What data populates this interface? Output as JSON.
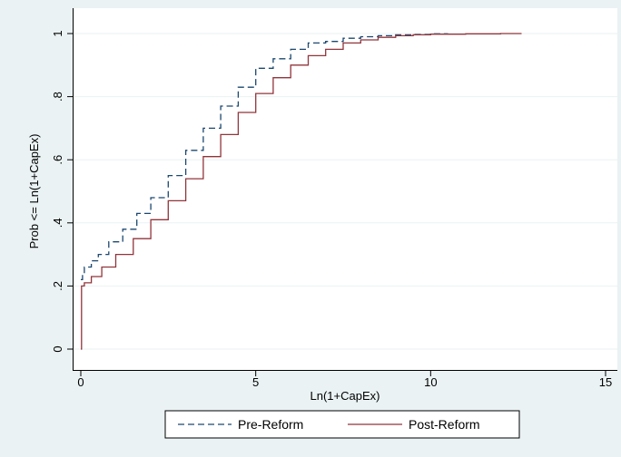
{
  "chart_data": {
    "type": "line",
    "step": true,
    "title": "",
    "xlabel": "Ln(1+CapEx)",
    "ylabel": "Prob <= Ln(1+CapEx)",
    "xlim": [
      0,
      15
    ],
    "ylim": [
      0,
      1
    ],
    "x_ticks": [
      0,
      5,
      10,
      15
    ],
    "y_ticks": [
      0,
      0.2,
      0.4,
      0.6,
      0.8,
      1
    ],
    "x_tick_labels": [
      "0",
      "5",
      "10",
      "15"
    ],
    "y_tick_labels": [
      "0",
      ".2",
      ".4",
      ".6",
      ".8",
      "1"
    ],
    "grid": "horizontal",
    "legend_position": "bottom",
    "series": [
      {
        "name": "Pre-Reform",
        "color": "#1a476f",
        "dash": "dashed",
        "points": [
          [
            0.0,
            0.22
          ],
          [
            0.05,
            0.24
          ],
          [
            0.1,
            0.26
          ],
          [
            0.3,
            0.28
          ],
          [
            0.5,
            0.3
          ],
          [
            0.8,
            0.34
          ],
          [
            1.2,
            0.38
          ],
          [
            1.6,
            0.43
          ],
          [
            2.0,
            0.48
          ],
          [
            2.5,
            0.55
          ],
          [
            3.0,
            0.63
          ],
          [
            3.5,
            0.7
          ],
          [
            4.0,
            0.77
          ],
          [
            4.5,
            0.83
          ],
          [
            5.0,
            0.89
          ],
          [
            5.5,
            0.92
          ],
          [
            6.0,
            0.95
          ],
          [
            6.5,
            0.97
          ],
          [
            7.0,
            0.975
          ],
          [
            7.5,
            0.985
          ],
          [
            8.0,
            0.99
          ],
          [
            8.5,
            0.993
          ],
          [
            9.0,
            0.996
          ],
          [
            9.5,
            0.997
          ],
          [
            10.0,
            0.999
          ],
          [
            10.5,
            1.0
          ]
        ]
      },
      {
        "name": "Post-Reform",
        "color": "#90353b",
        "dash": "solid",
        "points": [
          [
            0.0,
            0.0
          ],
          [
            0.02,
            0.2
          ],
          [
            0.1,
            0.21
          ],
          [
            0.3,
            0.23
          ],
          [
            0.6,
            0.26
          ],
          [
            1.0,
            0.3
          ],
          [
            1.5,
            0.35
          ],
          [
            2.0,
            0.41
          ],
          [
            2.5,
            0.47
          ],
          [
            3.0,
            0.54
          ],
          [
            3.5,
            0.61
          ],
          [
            4.0,
            0.68
          ],
          [
            4.5,
            0.75
          ],
          [
            5.0,
            0.81
          ],
          [
            5.5,
            0.86
          ],
          [
            6.0,
            0.9
          ],
          [
            6.5,
            0.93
          ],
          [
            7.0,
            0.95
          ],
          [
            7.5,
            0.97
          ],
          [
            8.0,
            0.98
          ],
          [
            8.5,
            0.988
          ],
          [
            9.0,
            0.993
          ],
          [
            9.5,
            0.996
          ],
          [
            10.0,
            0.998
          ],
          [
            11.0,
            0.999
          ],
          [
            12.0,
            1.0
          ],
          [
            12.6,
            1.0
          ]
        ]
      }
    ]
  }
}
